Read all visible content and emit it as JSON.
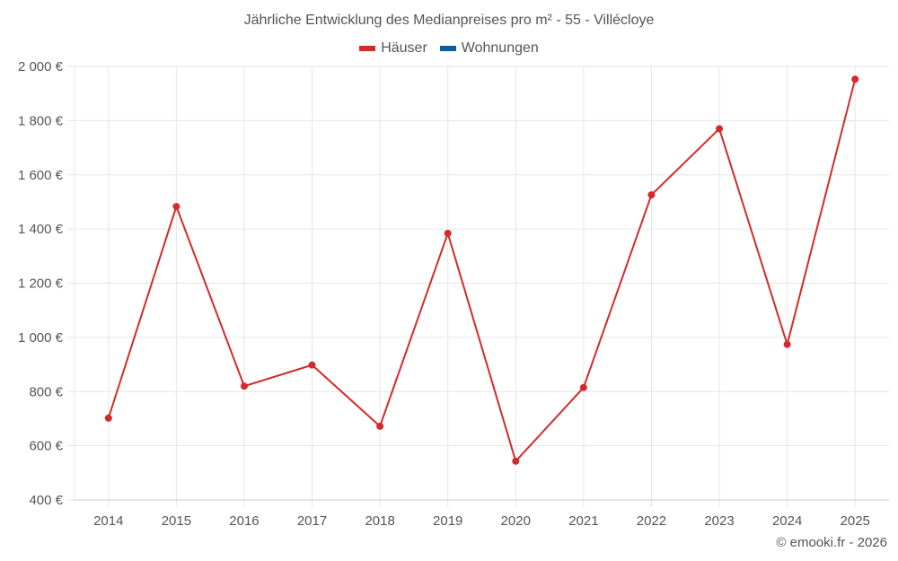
{
  "chart_data": {
    "type": "line",
    "title": "Jährliche Entwicklung des Medianpreises pro m² - 55 - Villécloye",
    "xlabel": "",
    "ylabel": "",
    "categories": [
      "2014",
      "2015",
      "2016",
      "2017",
      "2018",
      "2019",
      "2020",
      "2021",
      "2022",
      "2023",
      "2024",
      "2025"
    ],
    "series": [
      {
        "name": "Häuser",
        "color": "#d42a2a",
        "values": [
          702,
          1483,
          820,
          898,
          672,
          1384,
          543,
          815,
          1526,
          1770,
          974,
          1953
        ]
      },
      {
        "name": "Wohnungen",
        "color": "#0b5fa0",
        "values": []
      }
    ],
    "ylim": [
      400,
      2000
    ],
    "yticks": [
      400,
      600,
      800,
      1000,
      1200,
      1400,
      1600,
      1800,
      2000
    ],
    "ytick_labels": [
      "400 €",
      "600 €",
      "800 €",
      "1 000 €",
      "1 200 €",
      "1 400 €",
      "1 600 €",
      "1 800 €",
      "2 000 €"
    ],
    "grid": true,
    "legend_position": "top"
  },
  "legend": [
    {
      "label": "Häuser",
      "color": "#d42a2a"
    },
    {
      "label": "Wohnungen",
      "color": "#0b5fa0"
    }
  ],
  "credit": "© emooki.fr - 2026"
}
